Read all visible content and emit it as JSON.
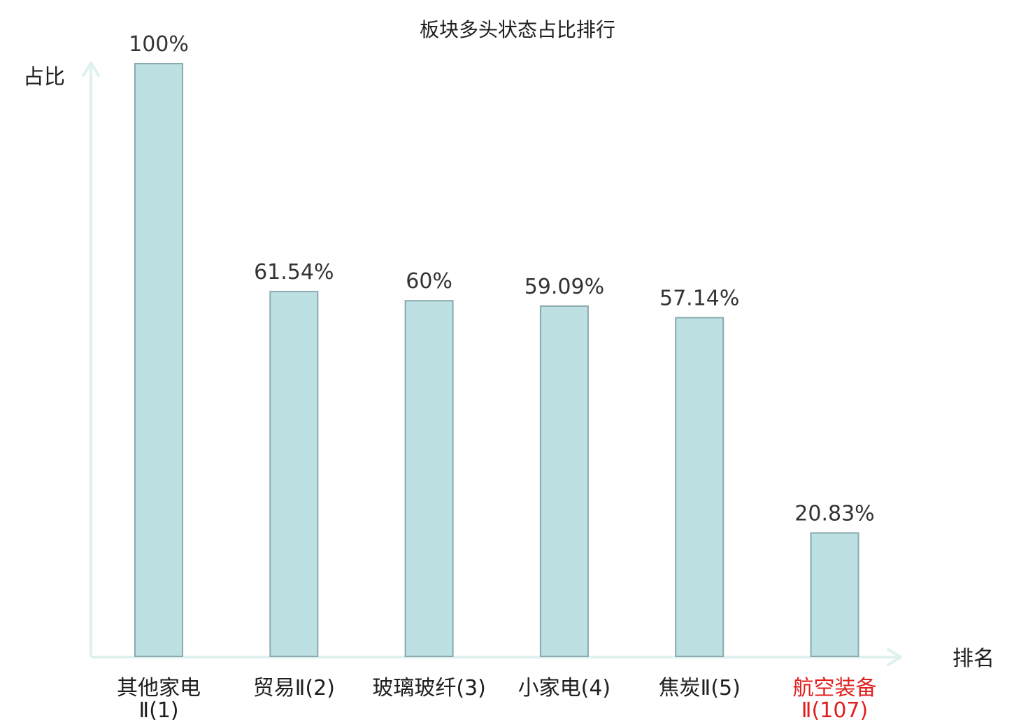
{
  "chart_data": {
    "type": "bar",
    "title": "板块多头状态占比排行",
    "xlabel": "排名",
    "ylabel": "占比",
    "ylim": [
      0,
      100
    ],
    "categories": [
      {
        "line1": "其他家电",
        "line2": "Ⅱ(1)",
        "highlight": false
      },
      {
        "line1": "贸易Ⅱ(2)",
        "line2": "",
        "highlight": false
      },
      {
        "line1": "玻璃玻纤(3)",
        "line2": "",
        "highlight": false
      },
      {
        "line1": "小家电(4)",
        "line2": "",
        "highlight": false
      },
      {
        "line1": "焦炭Ⅱ(5)",
        "line2": "",
        "highlight": false
      },
      {
        "line1": "航空装备",
        "line2": "Ⅱ(107)",
        "highlight": true
      }
    ],
    "values": [
      100,
      61.54,
      60,
      59.09,
      57.14,
      20.83
    ],
    "value_labels": [
      "100%",
      "61.54%",
      "60%",
      "59.09%",
      "57.14%",
      "20.83%"
    ],
    "grid": false,
    "colors": {
      "bar_fill": "#bde0e2",
      "bar_stroke": "#8aa9ad",
      "axis": "#dff1ef",
      "highlight_text": "#e11f1f",
      "text": "#1f1f1f",
      "value_text": "#333333"
    }
  }
}
